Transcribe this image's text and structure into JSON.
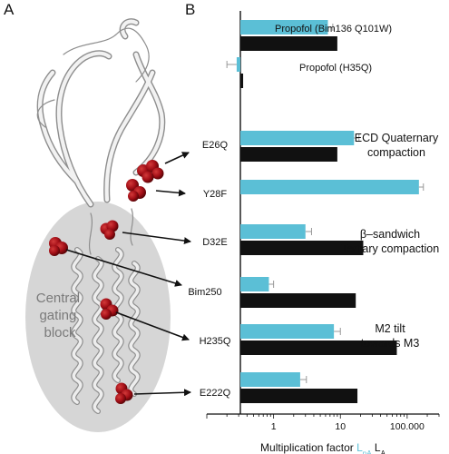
{
  "panels": {
    "a": "A",
    "b": "B"
  },
  "structure_label": [
    "Central",
    "gating",
    "block"
  ],
  "chart_data": {
    "type": "bar",
    "orientation": "horizontal",
    "xscale": "log",
    "xlim": [
      0.1,
      300
    ],
    "xticks": [
      {
        "v": 1,
        "label": "1"
      },
      {
        "v": 10,
        "label": "10"
      },
      {
        "v": 100,
        "label": "100.000"
      }
    ],
    "xlabel_parts": [
      {
        "t": "Multiplication factor ",
        "c": "#111111"
      },
      {
        "t": "L",
        "c": "#5bbfd6"
      },
      {
        "t": "pA",
        "c": "#5bbfd6",
        "sub": true
      },
      {
        "t": " L",
        "c": "#111111"
      },
      {
        "t": "A",
        "c": "#111111",
        "sub": true
      }
    ],
    "series": [
      {
        "name": "LpA",
        "color": "#5bbfd6"
      },
      {
        "name": "LA",
        "color": "#111111"
      }
    ],
    "categories": [
      {
        "label": "Propofol (Bim136 Q101W)",
        "color": "#111111",
        "lpa": 6.5,
        "lpa_err": 1.2,
        "la": 9
      },
      {
        "label": "Propofol (H35Q)",
        "color": "#3cae3c",
        "lpa": 0.28,
        "lpa_err": 0.08,
        "la": 0.35
      },
      {
        "label": "E26Q",
        "color": "#e08a2c",
        "lpa": 16,
        "lpa_err": 3,
        "la": 9
      },
      {
        "label": "Y28F",
        "color": "#e08a2c",
        "lpa": 150,
        "lpa_err": 25,
        "la": null
      },
      {
        "label": "D32E",
        "color": "#2a9ab8",
        "lpa": 3,
        "lpa_err": 0.7,
        "la": 22
      },
      {
        "label": "Bim250",
        "color": "#111111",
        "lpa": 0.85,
        "lpa_err": 0.15,
        "la": 17
      },
      {
        "label": "H235Q",
        "color": "#3cae3c",
        "lpa": 8,
        "lpa_err": 2,
        "la": 70
      },
      {
        "label": "E222Q",
        "color": "#a8cc3a",
        "lpa": 2.5,
        "lpa_err": 0.6,
        "la": 18
      }
    ],
    "annotations": [
      {
        "lines": [
          "ECD Quaternary",
          "compaction"
        ]
      },
      {
        "lines": [
          "β–sandwich",
          "Tertiary compaction"
        ]
      },
      {
        "lines": [
          "M2 tilt",
          "towards M3"
        ]
      }
    ]
  }
}
